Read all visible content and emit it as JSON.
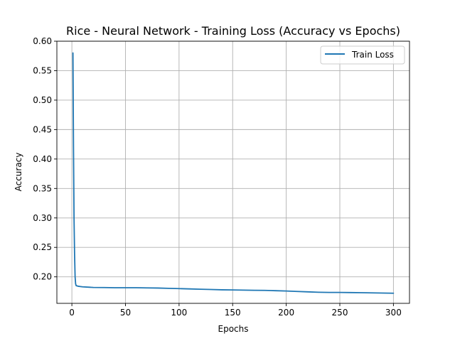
{
  "chart_data": {
    "type": "line",
    "title": "Rice - Neural Network - Training Loss (Accuracy vs Epochs)",
    "xlabel": "Epochs",
    "ylabel": "Accuracy",
    "xlim": [
      -14,
      315
    ],
    "ylim": [
      0.155,
      0.6
    ],
    "xticks": [
      0,
      50,
      100,
      150,
      200,
      250,
      300
    ],
    "yticks": [
      0.2,
      0.25,
      0.3,
      0.35,
      0.4,
      0.45,
      0.5,
      0.55,
      0.6
    ],
    "xtick_labels": [
      "0",
      "50",
      "100",
      "150",
      "200",
      "250",
      "300"
    ],
    "ytick_labels": [
      "0.20",
      "0.25",
      "0.30",
      "0.35",
      "0.40",
      "0.45",
      "0.50",
      "0.55",
      "0.60"
    ],
    "grid": true,
    "legend": {
      "placement": "top-right",
      "entries": [
        "Train Loss"
      ]
    },
    "series": [
      {
        "name": "Train Loss",
        "color": "#1f77b4",
        "x": [
          1,
          1.5,
          2,
          2.5,
          3,
          3.5,
          4,
          5,
          6,
          8,
          10,
          15,
          20,
          30,
          40,
          50,
          60,
          70,
          80,
          90,
          100,
          110,
          120,
          130,
          140,
          150,
          160,
          170,
          180,
          190,
          200,
          210,
          220,
          230,
          240,
          250,
          260,
          270,
          280,
          290,
          300
        ],
        "values": [
          0.58,
          0.42,
          0.3,
          0.24,
          0.2,
          0.188,
          0.185,
          0.1845,
          0.184,
          0.1835,
          0.183,
          0.1825,
          0.182,
          0.1818,
          0.1815,
          0.1815,
          0.1815,
          0.1812,
          0.181,
          0.1805,
          0.18,
          0.1795,
          0.179,
          0.1785,
          0.178,
          0.1778,
          0.1775,
          0.1772,
          0.177,
          0.1765,
          0.176,
          0.1752,
          0.1745,
          0.1738,
          0.1735,
          0.1735,
          0.1733,
          0.1731,
          0.1728,
          0.1725,
          0.1722
        ]
      }
    ]
  }
}
